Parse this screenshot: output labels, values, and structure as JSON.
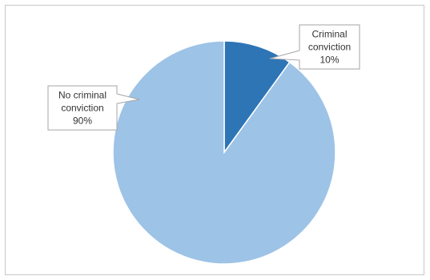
{
  "chart_data": {
    "type": "pie",
    "categories": [
      "Criminal conviction",
      "No criminal conviction"
    ],
    "values": [
      10,
      90
    ],
    "labels": [
      {
        "lines": [
          "Criminal",
          "conviction",
          "10%"
        ]
      },
      {
        "lines": [
          "No criminal",
          "conviction",
          "90%"
        ]
      }
    ],
    "colors": [
      "#2e75b6",
      "#9dc3e6"
    ],
    "start_angle_deg": 0,
    "direction": "clockwise"
  }
}
